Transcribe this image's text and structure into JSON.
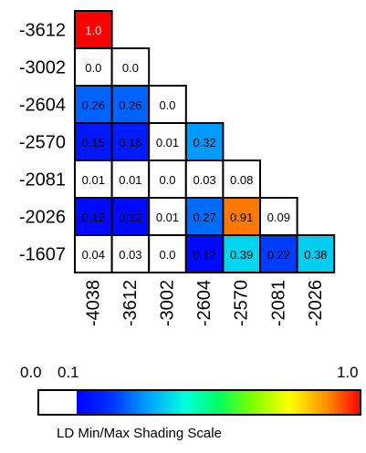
{
  "chart_data": {
    "type": "heatmap",
    "row_labels": [
      "-3612",
      "-3002",
      "-2604",
      "-2570",
      "-2081",
      "-2026",
      "-1607"
    ],
    "col_labels": [
      "-4038",
      "-3612",
      "-3002",
      "-2604",
      "-2570",
      "-2081",
      "-2026"
    ],
    "cells": [
      [
        "1.0"
      ],
      [
        "0.0",
        "0.0"
      ],
      [
        "0.26",
        "0.26",
        "0.0"
      ],
      [
        "0.15",
        "0.16",
        "0.01",
        "0.32"
      ],
      [
        "0.01",
        "0.01",
        "0.0",
        "0.03",
        "0.08"
      ],
      [
        "0.12",
        "0.12",
        "0.01",
        "0.27",
        "0.91",
        "0.09"
      ],
      [
        "0.04",
        "0.03",
        "0.0",
        "0.12",
        "0.39",
        "0.22",
        "0.38"
      ]
    ],
    "values": [
      [
        1.0
      ],
      [
        0.0,
        0.0
      ],
      [
        0.26,
        0.26,
        0.0
      ],
      [
        0.15,
        0.16,
        0.01,
        0.32
      ],
      [
        0.01,
        0.01,
        0.0,
        0.03,
        0.08
      ],
      [
        0.12,
        0.12,
        0.01,
        0.27,
        0.91,
        0.09
      ],
      [
        0.04,
        0.03,
        0.0,
        0.12,
        0.39,
        0.22,
        0.38
      ]
    ],
    "scale": {
      "min_label": "0.0",
      "threshold_label": "0.1",
      "max_label": "1.0",
      "threshold": 0.1,
      "title": "LD Min/Max Shading Scale"
    },
    "colors": {
      "below_threshold": "#ffffff",
      "low": "#0000ff",
      "max": "#ff0000",
      "border": "#000000"
    }
  }
}
